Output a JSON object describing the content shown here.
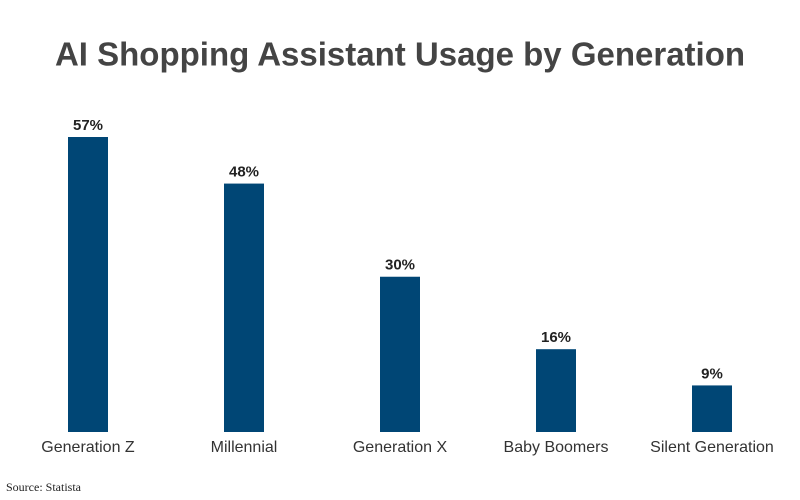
{
  "chart_data": {
    "type": "bar",
    "title": "AI Shopping Assistant Usage by Generation",
    "categories": [
      "Generation Z",
      "Millennial",
      "Generation X",
      "Baby Boomers",
      "Silent Generation"
    ],
    "values": [
      57,
      48,
      30,
      16,
      9
    ],
    "value_labels": [
      "57%",
      "48%",
      "30%",
      "16%",
      "9%"
    ],
    "color": "#004675",
    "source": "Source: Statista"
  }
}
